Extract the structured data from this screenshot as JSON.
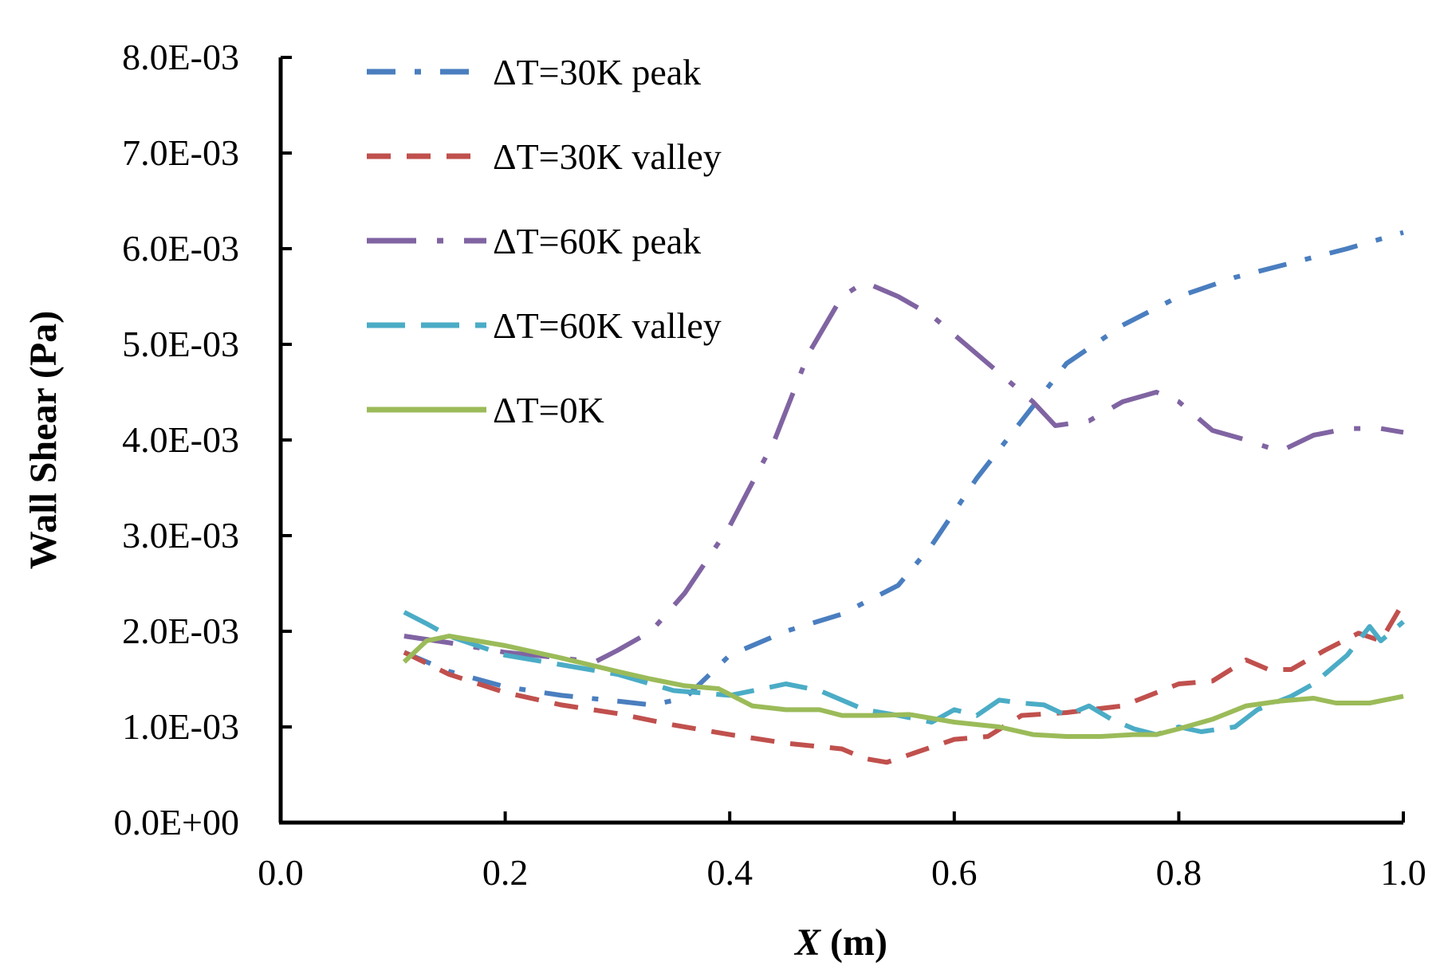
{
  "chart_data": {
    "type": "line",
    "title": "",
    "xlabel": "X (m)",
    "xlabel_var": "X",
    "xlabel_unit": " (m)",
    "ylabel": "Wall Shear (Pa)",
    "xlim": [
      0.0,
      1.0
    ],
    "ylim": [
      0.0,
      0.008
    ],
    "x_ticks": [
      0.0,
      0.2,
      0.4,
      0.6,
      0.8,
      1.0
    ],
    "x_tick_labels": [
      "0.0",
      "0.2",
      "0.4",
      "0.6",
      "0.8",
      "1.0"
    ],
    "y_ticks": [
      0.0,
      0.001,
      0.002,
      0.003,
      0.004,
      0.005,
      0.006,
      0.007,
      0.008
    ],
    "y_tick_labels": [
      "0.0E+00",
      "1.0E-03",
      "2.0E-03",
      "3.0E-03",
      "4.0E-03",
      "5.0E-03",
      "6.0E-03",
      "7.0E-03",
      "8.0E-03"
    ],
    "grid": false,
    "legend_position": "top-left",
    "series": [
      {
        "name": "ΔT=30K peak",
        "color": "#4a7ebf",
        "style": "dash-dot",
        "x": [
          0.11,
          0.15,
          0.2,
          0.25,
          0.3,
          0.33,
          0.36,
          0.4,
          0.45,
          0.5,
          0.55,
          0.58,
          0.62,
          0.66,
          0.7,
          0.75,
          0.8,
          0.85,
          0.9,
          0.95,
          1.0
        ],
        "y": [
          0.00178,
          0.00158,
          0.00142,
          0.00133,
          0.00127,
          0.00123,
          0.0013,
          0.00175,
          0.002,
          0.00218,
          0.00248,
          0.0029,
          0.0036,
          0.0042,
          0.0048,
          0.0052,
          0.0055,
          0.0057,
          0.00585,
          0.006,
          0.00617
        ]
      },
      {
        "name": "ΔT=30K valley",
        "color": "#c0504d",
        "style": "dash",
        "x": [
          0.11,
          0.15,
          0.2,
          0.25,
          0.3,
          0.35,
          0.4,
          0.45,
          0.5,
          0.52,
          0.54,
          0.57,
          0.6,
          0.63,
          0.66,
          0.7,
          0.75,
          0.8,
          0.83,
          0.86,
          0.88,
          0.9,
          0.93,
          0.96,
          0.98,
          1.0
        ],
        "y": [
          0.00178,
          0.00155,
          0.00136,
          0.00123,
          0.00114,
          0.00102,
          0.00092,
          0.00083,
          0.00077,
          0.00067,
          0.00063,
          0.00075,
          0.00087,
          0.0009,
          0.00112,
          0.00115,
          0.00122,
          0.00145,
          0.00148,
          0.0017,
          0.0016,
          0.0016,
          0.0018,
          0.00198,
          0.0019,
          0.0023
        ]
      },
      {
        "name": "ΔT=60K peak",
        "color": "#8064a2",
        "style": "long-dash-dot",
        "x": [
          0.11,
          0.15,
          0.2,
          0.25,
          0.28,
          0.3,
          0.33,
          0.36,
          0.4,
          0.44,
          0.47,
          0.5,
          0.52,
          0.55,
          0.58,
          0.61,
          0.64,
          0.67,
          0.69,
          0.72,
          0.75,
          0.78,
          0.8,
          0.83,
          0.86,
          0.89,
          0.92,
          0.95,
          0.98,
          1.0
        ],
        "y": [
          0.00195,
          0.00188,
          0.00178,
          0.00172,
          0.00168,
          0.0018,
          0.002,
          0.0024,
          0.0031,
          0.004,
          0.0049,
          0.0055,
          0.00565,
          0.0055,
          0.0053,
          0.005,
          0.0047,
          0.0044,
          0.00415,
          0.0042,
          0.0044,
          0.0045,
          0.0044,
          0.0041,
          0.004,
          0.00388,
          0.00405,
          0.00412,
          0.00412,
          0.00408
        ]
      },
      {
        "name": "ΔT=60K valley",
        "color": "#4bacc6",
        "style": "long-dash",
        "x": [
          0.11,
          0.13,
          0.15,
          0.2,
          0.25,
          0.3,
          0.35,
          0.4,
          0.43,
          0.45,
          0.48,
          0.5,
          0.52,
          0.55,
          0.58,
          0.6,
          0.62,
          0.64,
          0.66,
          0.68,
          0.7,
          0.72,
          0.74,
          0.76,
          0.78,
          0.8,
          0.82,
          0.85,
          0.87,
          0.9,
          0.92,
          0.95,
          0.97,
          0.98,
          1.0
        ],
        "y": [
          0.0022,
          0.00208,
          0.00195,
          0.00175,
          0.00165,
          0.00155,
          0.00138,
          0.00133,
          0.0014,
          0.00145,
          0.00138,
          0.00128,
          0.00118,
          0.00112,
          0.00105,
          0.00118,
          0.00112,
          0.00128,
          0.00125,
          0.00123,
          0.00112,
          0.00122,
          0.00108,
          0.00098,
          0.00092,
          0.001,
          0.00095,
          0.001,
          0.00118,
          0.00132,
          0.00145,
          0.00175,
          0.00205,
          0.0019,
          0.0021
        ]
      },
      {
        "name": "ΔT=0K",
        "color": "#9bbb59",
        "style": "solid",
        "x": [
          0.11,
          0.13,
          0.15,
          0.2,
          0.25,
          0.3,
          0.33,
          0.36,
          0.39,
          0.42,
          0.45,
          0.48,
          0.5,
          0.53,
          0.56,
          0.6,
          0.64,
          0.67,
          0.7,
          0.73,
          0.76,
          0.78,
          0.8,
          0.83,
          0.86,
          0.89,
          0.92,
          0.94,
          0.97,
          1.0
        ],
        "y": [
          0.00168,
          0.0019,
          0.00195,
          0.00185,
          0.00172,
          0.00158,
          0.0015,
          0.00143,
          0.0014,
          0.00122,
          0.00118,
          0.00118,
          0.00112,
          0.00112,
          0.00113,
          0.00105,
          0.001,
          0.00092,
          0.0009,
          0.0009,
          0.00092,
          0.00092,
          0.00098,
          0.00108,
          0.00122,
          0.00127,
          0.0013,
          0.00125,
          0.00125,
          0.00132
        ]
      }
    ]
  }
}
